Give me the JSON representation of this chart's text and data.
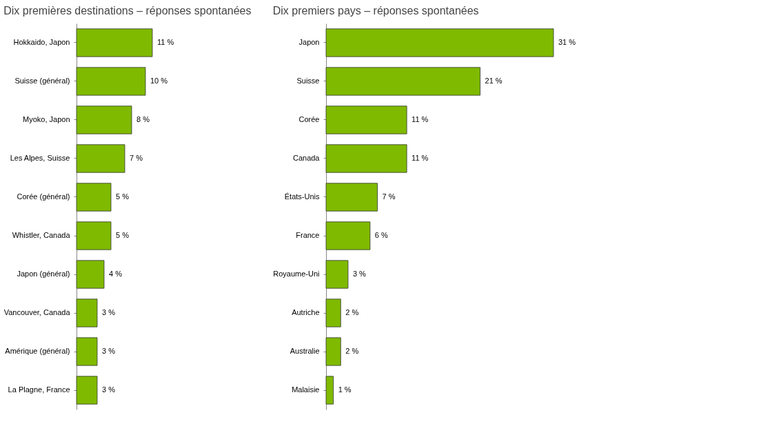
{
  "chart_data": [
    {
      "type": "bar",
      "orientation": "horizontal",
      "title": "Dix premières destinations – réponses spontanées",
      "categories": [
        "Hokkaido, Japon",
        "Suisse (général)",
        "Myoko, Japon",
        "Les Alpes, Suisse",
        "Corée (général)",
        "Whistler, Canada",
        "Japon (général)",
        "Vancouver, Canada",
        "Amérique (général)",
        "La Plagne, France"
      ],
      "values": [
        11,
        10,
        8,
        7,
        5,
        5,
        4,
        3,
        3,
        3
      ],
      "value_labels": [
        "11 %",
        "10 %",
        "8 %",
        "7 %",
        "5 %",
        "5 %",
        "4 %",
        "3 %",
        "3 %",
        "3 %"
      ],
      "color": "#7fba00",
      "tick_labels": "y",
      "grid": false
    },
    {
      "type": "bar",
      "orientation": "horizontal",
      "title": "Dix premiers pays – réponses spontanées",
      "categories": [
        "Japon",
        "Suisse",
        "Corée",
        "Canada",
        "États-Unis",
        "France",
        "Royaume-Uni",
        "Autriche",
        "Australie",
        "Malaisie"
      ],
      "values": [
        31,
        21,
        11,
        11,
        7,
        6,
        3,
        2,
        2,
        1
      ],
      "value_labels": [
        "31 %",
        "21 %",
        "11 %",
        "11 %",
        "7 %",
        "6 %",
        "3 %",
        "2 %",
        "2 %",
        "1 %"
      ],
      "color": "#7fba00",
      "tick_labels": "y",
      "grid": false
    }
  ]
}
